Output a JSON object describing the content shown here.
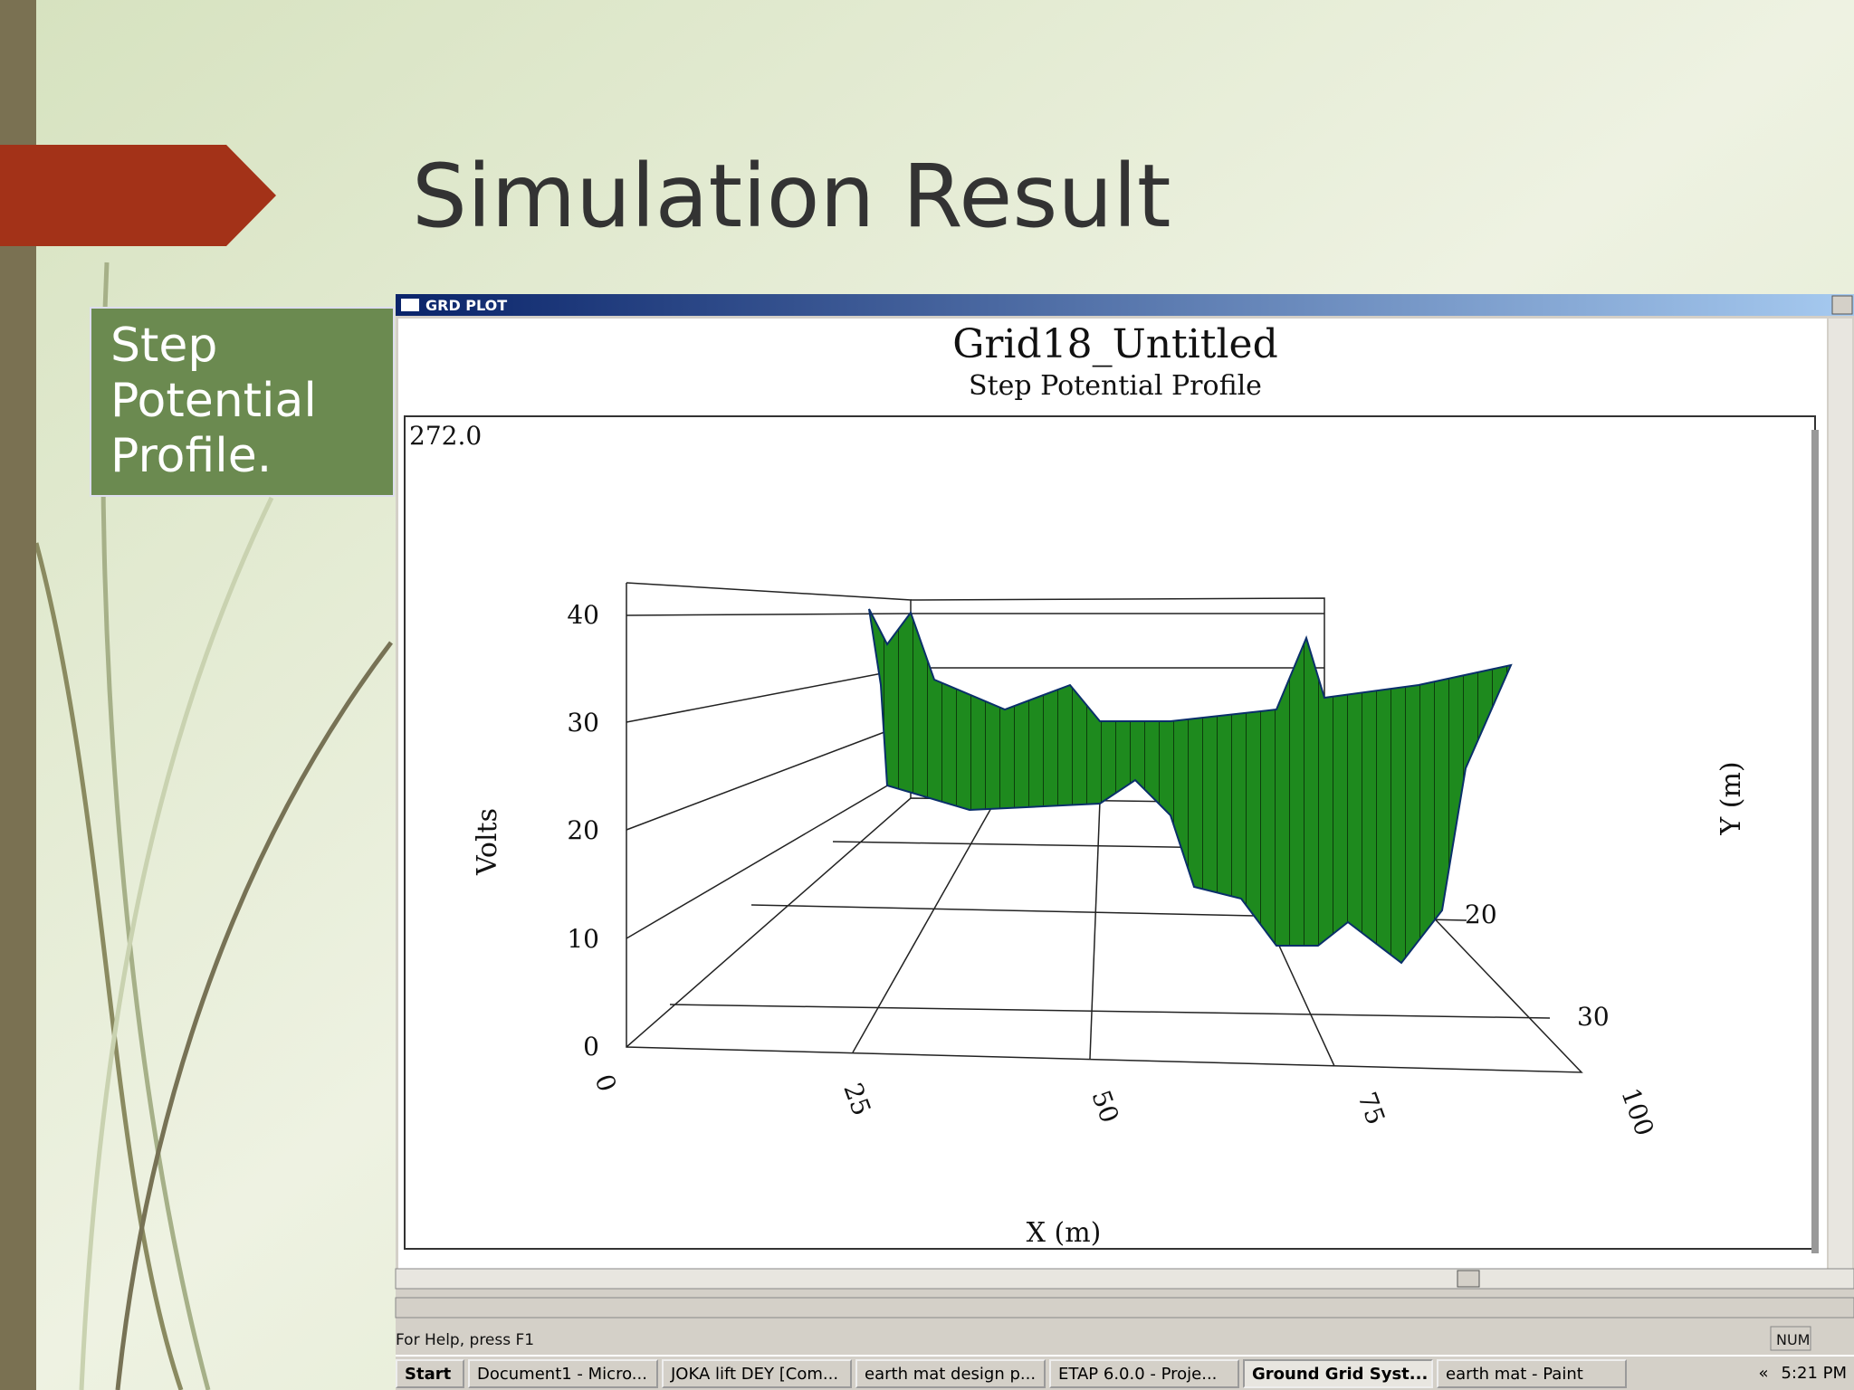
{
  "slide": {
    "title": "Simulation Result",
    "label": "Step Potential Profile."
  },
  "window": {
    "title": "GRD PLOT",
    "status": "For Help, press F1",
    "indicator": "NUM"
  },
  "plot": {
    "title": "Grid18_Untitled",
    "subtitle": "Step Potential Profile",
    "max_label": "272.0",
    "z_label": "Volts",
    "x_label": "X (m)",
    "y_label": "Y (m)",
    "z_ticks": [
      0,
      10,
      20,
      30,
      40
    ],
    "x_ticks": [
      0,
      25,
      50,
      75,
      100
    ],
    "y_ticks": [
      20,
      30
    ]
  },
  "taskbar": {
    "start": "Start",
    "items": [
      "Document1 - Micro...",
      "JOKA lift DEY [Com...",
      "earth mat design p...",
      "ETAP 6.0.0 - Proje...",
      "Ground Grid Syst...",
      "earth mat - Paint"
    ],
    "overflow": "«",
    "clock": "5:21 PM"
  }
}
